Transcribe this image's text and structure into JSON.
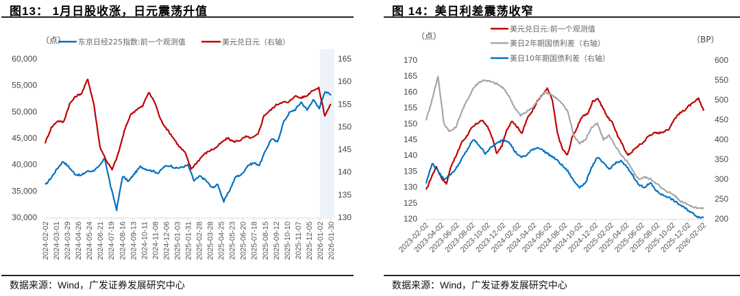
{
  "figures": [
    {
      "title": "图13： 1月日股收涨，日元震荡升值",
      "source": "数据来源：Wind，广发证券发展研究中心",
      "unit_left": "（点）",
      "legend": [
        "东京日经225指数:前一个观测值",
        "美元兑日元（右轴）"
      ]
    },
    {
      "title": "图 14：美日利差震荡收窄",
      "source": "数据来源：Wind，广发证券发展研究中心",
      "unit_left": "（点）",
      "unit_right": "（BP）",
      "legend": [
        "美元兑日元:前一个观测值",
        "美日2年期国债利差（右轴）",
        "美日10年期国债利差（右轴）"
      ]
    }
  ],
  "chart_data": [
    {
      "type": "line",
      "title": "图13： 1月日股收涨，日元震荡升值",
      "ylabel": "（点）",
      "y_left_ticks": [
        "60,000",
        "55,000",
        "50,000",
        "45,000",
        "40,000",
        "35,000",
        "30,000"
      ],
      "ylim_left": [
        30000,
        60000
      ],
      "y_right_ticks": [
        "165",
        "160",
        "155",
        "150",
        "145",
        "140",
        "135",
        "130"
      ],
      "ylim_right": [
        130,
        165
      ],
      "x_ticks": [
        "2024-02-02",
        "2024-03-01",
        "2024-03-29",
        "2024-04-26",
        "2024-05-24",
        "2024-06-21",
        "2024-07-19",
        "2024-08-16",
        "2024-09-13",
        "2024-10-11",
        "2024-11-08",
        "2024-12-06",
        "2025-01-03",
        "2025-01-31",
        "2025-02-28",
        "2025-03-28",
        "2025-04-25",
        "2025-05-23",
        "2025-06-20",
        "2025-07-18",
        "2025-08-15",
        "2025-09-12",
        "2025-10-10",
        "2025-11-07",
        "2025-12-05",
        "2026-01-02",
        "2026-01-30"
      ],
      "highlight_region": [
        "2026-01-02",
        "2026-01-30"
      ],
      "legend_position": "top",
      "series": [
        {
          "name": "东京日经225指数:前一个观测值",
          "axis": "left",
          "color": "#0070C0",
          "values": [
            36100,
            37500,
            39200,
            40600,
            39500,
            38200,
            37900,
            38700,
            38800,
            39500,
            41200,
            35800,
            31500,
            37800,
            36800,
            38300,
            39600,
            39100,
            38800,
            38400,
            39600,
            39800,
            39300,
            39500,
            39900,
            36900,
            37800,
            37000,
            35600,
            36200,
            33000,
            35200,
            37700,
            38100,
            39800,
            40300,
            39900,
            42600,
            44900,
            44200,
            47900,
            49800,
            50400,
            51800,
            50300,
            52300,
            50600,
            53900,
            53100
          ]
        },
        {
          "name": "美元兑日元（右轴）",
          "axis": "right",
          "color": "#C00000",
          "values": [
            146.5,
            149.8,
            151.3,
            151.0,
            155.0,
            156.7,
            157.4,
            160.5,
            155.0,
            145.6,
            142.7,
            140.5,
            144.0,
            149.0,
            152.6,
            153.8,
            154.5,
            157.6,
            155.5,
            151.5,
            149.5,
            147.7,
            145.7,
            144.3,
            140.7,
            142.2,
            143.8,
            144.7,
            145.3,
            146.5,
            147.5,
            146.7,
            147.0,
            147.8,
            147.5,
            148.3,
            152.5,
            153.6,
            154.8,
            155.5,
            155.3,
            156.8,
            156.4,
            156.8,
            158.1,
            158.5,
            152.5,
            155.0
          ]
        }
      ]
    },
    {
      "type": "line",
      "title": "图 14：美日利差震荡收窄",
      "ylabel": "（点）",
      "ylabel_right": "（BP）",
      "y_left_ticks": [
        "170",
        "165",
        "160",
        "155",
        "150",
        "145",
        "140",
        "135",
        "130",
        "125",
        "120"
      ],
      "ylim_left": [
        120,
        170
      ],
      "y_right_ticks": [
        "600",
        "550",
        "500",
        "450",
        "400",
        "350",
        "300",
        "250",
        "200"
      ],
      "ylim_right": [
        200,
        600
      ],
      "x_ticks": [
        "2023-02-02",
        "2023-04-02",
        "2023-06-02",
        "2023-08-02",
        "2023-10-02",
        "2023-12-02",
        "2024-02-02",
        "2024-04-02",
        "2024-06-02",
        "2024-08-02",
        "2024-10-02",
        "2024-12-02",
        "2025-02-02",
        "2025-04-02",
        "2025-06-02",
        "2025-08-02",
        "2025-10-02",
        "2025-12-02",
        "2026-02-02"
      ],
      "legend_position": "top",
      "series": [
        {
          "name": "美元兑日元:前一个观测值",
          "axis": "left",
          "color": "#C00000",
          "values": [
            129,
            133,
            136.5,
            133,
            131,
            137,
            140,
            144,
            146,
            148.5,
            150,
            151,
            149.5,
            146,
            140.5,
            143,
            148,
            151,
            149,
            147,
            151.5,
            154,
            157,
            159,
            161,
            157.5,
            147,
            142,
            140,
            146,
            149,
            152.5,
            153,
            157,
            158,
            155,
            152,
            150,
            146,
            143,
            140,
            141.5,
            143,
            144,
            146,
            147,
            147,
            147.5,
            148,
            151,
            153,
            154,
            155.5,
            156.5,
            158,
            154
          ]
        },
        {
          "name": "美日2年期国债利差（右轴）",
          "axis": "right",
          "color": "#A6A6A6",
          "values": [
            450,
            500,
            560,
            440,
            420,
            430,
            470,
            500,
            530,
            545,
            550,
            545,
            540,
            530,
            510,
            480,
            460,
            470,
            480,
            500,
            520,
            515,
            505,
            490,
            470,
            410,
            390,
            400,
            430,
            440,
            400,
            410,
            385,
            360,
            345,
            320,
            300,
            305,
            300,
            290,
            275,
            268,
            260,
            245,
            240,
            230,
            228,
            225
          ]
        },
        {
          "name": "美日10年期国债利差（右轴）",
          "axis": "right",
          "color": "#0070C0",
          "values": [
            290,
            340,
            320,
            300,
            310,
            325,
            350,
            375,
            400,
            385,
            365,
            380,
            390,
            400,
            395,
            370,
            355,
            360,
            375,
            380,
            370,
            360,
            350,
            335,
            320,
            295,
            280,
            290,
            330,
            355,
            340,
            325,
            340,
            345,
            330,
            310,
            285,
            280,
            290,
            270,
            260,
            255,
            245,
            235,
            225,
            215,
            205,
            203
          ]
        }
      ]
    }
  ]
}
